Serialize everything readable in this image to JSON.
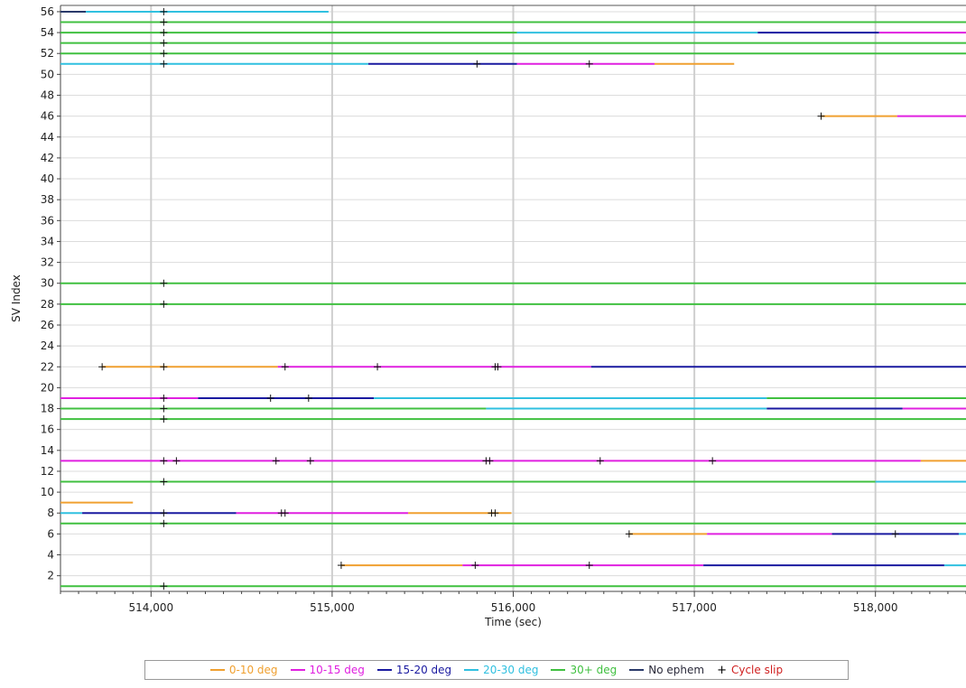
{
  "chart_data": {
    "type": "timeline",
    "xlabel": "Time (sec)",
    "ylabel": "SV Index",
    "xlim": [
      513500,
      518500
    ],
    "ylim": [
      0.5,
      56.6
    ],
    "x_ticks": [
      514000,
      515000,
      516000,
      517000,
      518000
    ],
    "x_tick_labels": [
      "514,000",
      "515,000",
      "516,000",
      "517,000",
      "518,000"
    ],
    "y_ticks": [
      2,
      4,
      6,
      8,
      10,
      12,
      14,
      16,
      18,
      20,
      22,
      24,
      26,
      28,
      30,
      32,
      34,
      36,
      38,
      40,
      42,
      44,
      46,
      48,
      50,
      52,
      54,
      56
    ],
    "grid": true,
    "categories": {
      "0-10": {
        "label": "0-10 deg",
        "color": "#f0a030"
      },
      "10-15": {
        "label": "10-15 deg",
        "color": "#e020e0"
      },
      "15-20": {
        "label": "15-20 deg",
        "color": "#1a1aa0"
      },
      "20-30": {
        "label": "20-30 deg",
        "color": "#30c0e0"
      },
      "30+": {
        "label": "30+ deg",
        "color": "#40c040"
      },
      "noeph": {
        "label": "No ephem",
        "color": "#2a3a6a"
      }
    },
    "cycle_slip": {
      "label": "Cycle slip",
      "marker": "+",
      "color": "#d02020"
    },
    "legend_position": "bottom",
    "tracks": [
      {
        "sv": 56,
        "segments": [
          [
            513500,
            513640,
            "noeph"
          ],
          [
            513640,
            514980,
            "20-30"
          ]
        ],
        "slips": [
          514070
        ]
      },
      {
        "sv": 55,
        "segments": [
          [
            513500,
            518500,
            "30+"
          ]
        ],
        "slips": [
          514070
        ]
      },
      {
        "sv": 54,
        "segments": [
          [
            513500,
            516020,
            "30+"
          ],
          [
            516020,
            517350,
            "20-30"
          ],
          [
            517350,
            518020,
            "15-20"
          ],
          [
            518020,
            518500,
            "10-15"
          ]
        ],
        "slips": [
          514070
        ]
      },
      {
        "sv": 53,
        "segments": [
          [
            513500,
            518500,
            "30+"
          ]
        ],
        "slips": [
          514070
        ]
      },
      {
        "sv": 52,
        "segments": [
          [
            513500,
            518500,
            "30+"
          ]
        ],
        "slips": [
          514070
        ]
      },
      {
        "sv": 51,
        "segments": [
          [
            513500,
            515200,
            "20-30"
          ],
          [
            515200,
            516020,
            "15-20"
          ],
          [
            516020,
            516780,
            "10-15"
          ],
          [
            516780,
            517220,
            "0-10"
          ]
        ],
        "slips": [
          514070,
          515800,
          516420
        ]
      },
      {
        "sv": 46,
        "segments": [
          [
            517700,
            518120,
            "0-10"
          ],
          [
            518120,
            518500,
            "10-15"
          ]
        ],
        "slips": [
          517700
        ]
      },
      {
        "sv": 30,
        "segments": [
          [
            513500,
            518500,
            "30+"
          ]
        ],
        "slips": [
          514070
        ]
      },
      {
        "sv": 28,
        "segments": [
          [
            513500,
            518500,
            "30+"
          ]
        ],
        "slips": [
          514070
        ]
      },
      {
        "sv": 22,
        "segments": [
          [
            513730,
            514700,
            "0-10"
          ],
          [
            514700,
            516430,
            "10-15"
          ],
          [
            516430,
            518500,
            "15-20"
          ]
        ],
        "slips": [
          513730,
          514070,
          514740,
          515250,
          515900,
          515915
        ]
      },
      {
        "sv": 19,
        "segments": [
          [
            513500,
            514260,
            "10-15"
          ],
          [
            514260,
            515230,
            "15-20"
          ],
          [
            515230,
            517400,
            "20-30"
          ],
          [
            517400,
            518500,
            "30+"
          ]
        ],
        "slips": [
          514070,
          514660,
          514870
        ]
      },
      {
        "sv": 18,
        "segments": [
          [
            513500,
            515850,
            "30+"
          ],
          [
            515850,
            517400,
            "20-30"
          ],
          [
            517400,
            518150,
            "15-20"
          ],
          [
            518150,
            518500,
            "10-15"
          ]
        ],
        "slips": [
          514070
        ]
      },
      {
        "sv": 17,
        "segments": [
          [
            513500,
            518500,
            "30+"
          ]
        ],
        "slips": [
          514070
        ]
      },
      {
        "sv": 13,
        "segments": [
          [
            513500,
            518250,
            "10-15"
          ],
          [
            518250,
            518500,
            "0-10"
          ]
        ],
        "slips": [
          514070,
          514140,
          514690,
          514880,
          515850,
          515870,
          516480,
          517100
        ]
      },
      {
        "sv": 11,
        "segments": [
          [
            513500,
            518000,
            "30+"
          ],
          [
            518000,
            518500,
            "20-30"
          ]
        ],
        "slips": [
          514070
        ]
      },
      {
        "sv": 9,
        "segments": [
          [
            513500,
            513900,
            "0-10"
          ]
        ],
        "slips": []
      },
      {
        "sv": 8,
        "segments": [
          [
            513500,
            513620,
            "20-30"
          ],
          [
            513620,
            514470,
            "15-20"
          ],
          [
            514470,
            515420,
            "10-15"
          ],
          [
            515420,
            515990,
            "0-10"
          ]
        ],
        "slips": [
          514070,
          514720,
          514740,
          515880,
          515900
        ]
      },
      {
        "sv": 7,
        "segments": [
          [
            513500,
            518500,
            "30+"
          ]
        ],
        "slips": [
          514070
        ]
      },
      {
        "sv": 6,
        "segments": [
          [
            516640,
            517070,
            "0-10"
          ],
          [
            517070,
            517760,
            "10-15"
          ],
          [
            517760,
            518460,
            "15-20"
          ],
          [
            518460,
            518500,
            "20-30"
          ]
        ],
        "slips": [
          516640,
          518110
        ]
      },
      {
        "sv": 3,
        "segments": [
          [
            515050,
            515720,
            "0-10"
          ],
          [
            515720,
            517050,
            "10-15"
          ],
          [
            517050,
            518380,
            "15-20"
          ],
          [
            518380,
            518500,
            "20-30"
          ]
        ],
        "slips": [
          515050,
          515790,
          516420
        ]
      },
      {
        "sv": 1,
        "segments": [
          [
            513500,
            518500,
            "30+"
          ]
        ],
        "slips": [
          514070
        ]
      }
    ]
  }
}
